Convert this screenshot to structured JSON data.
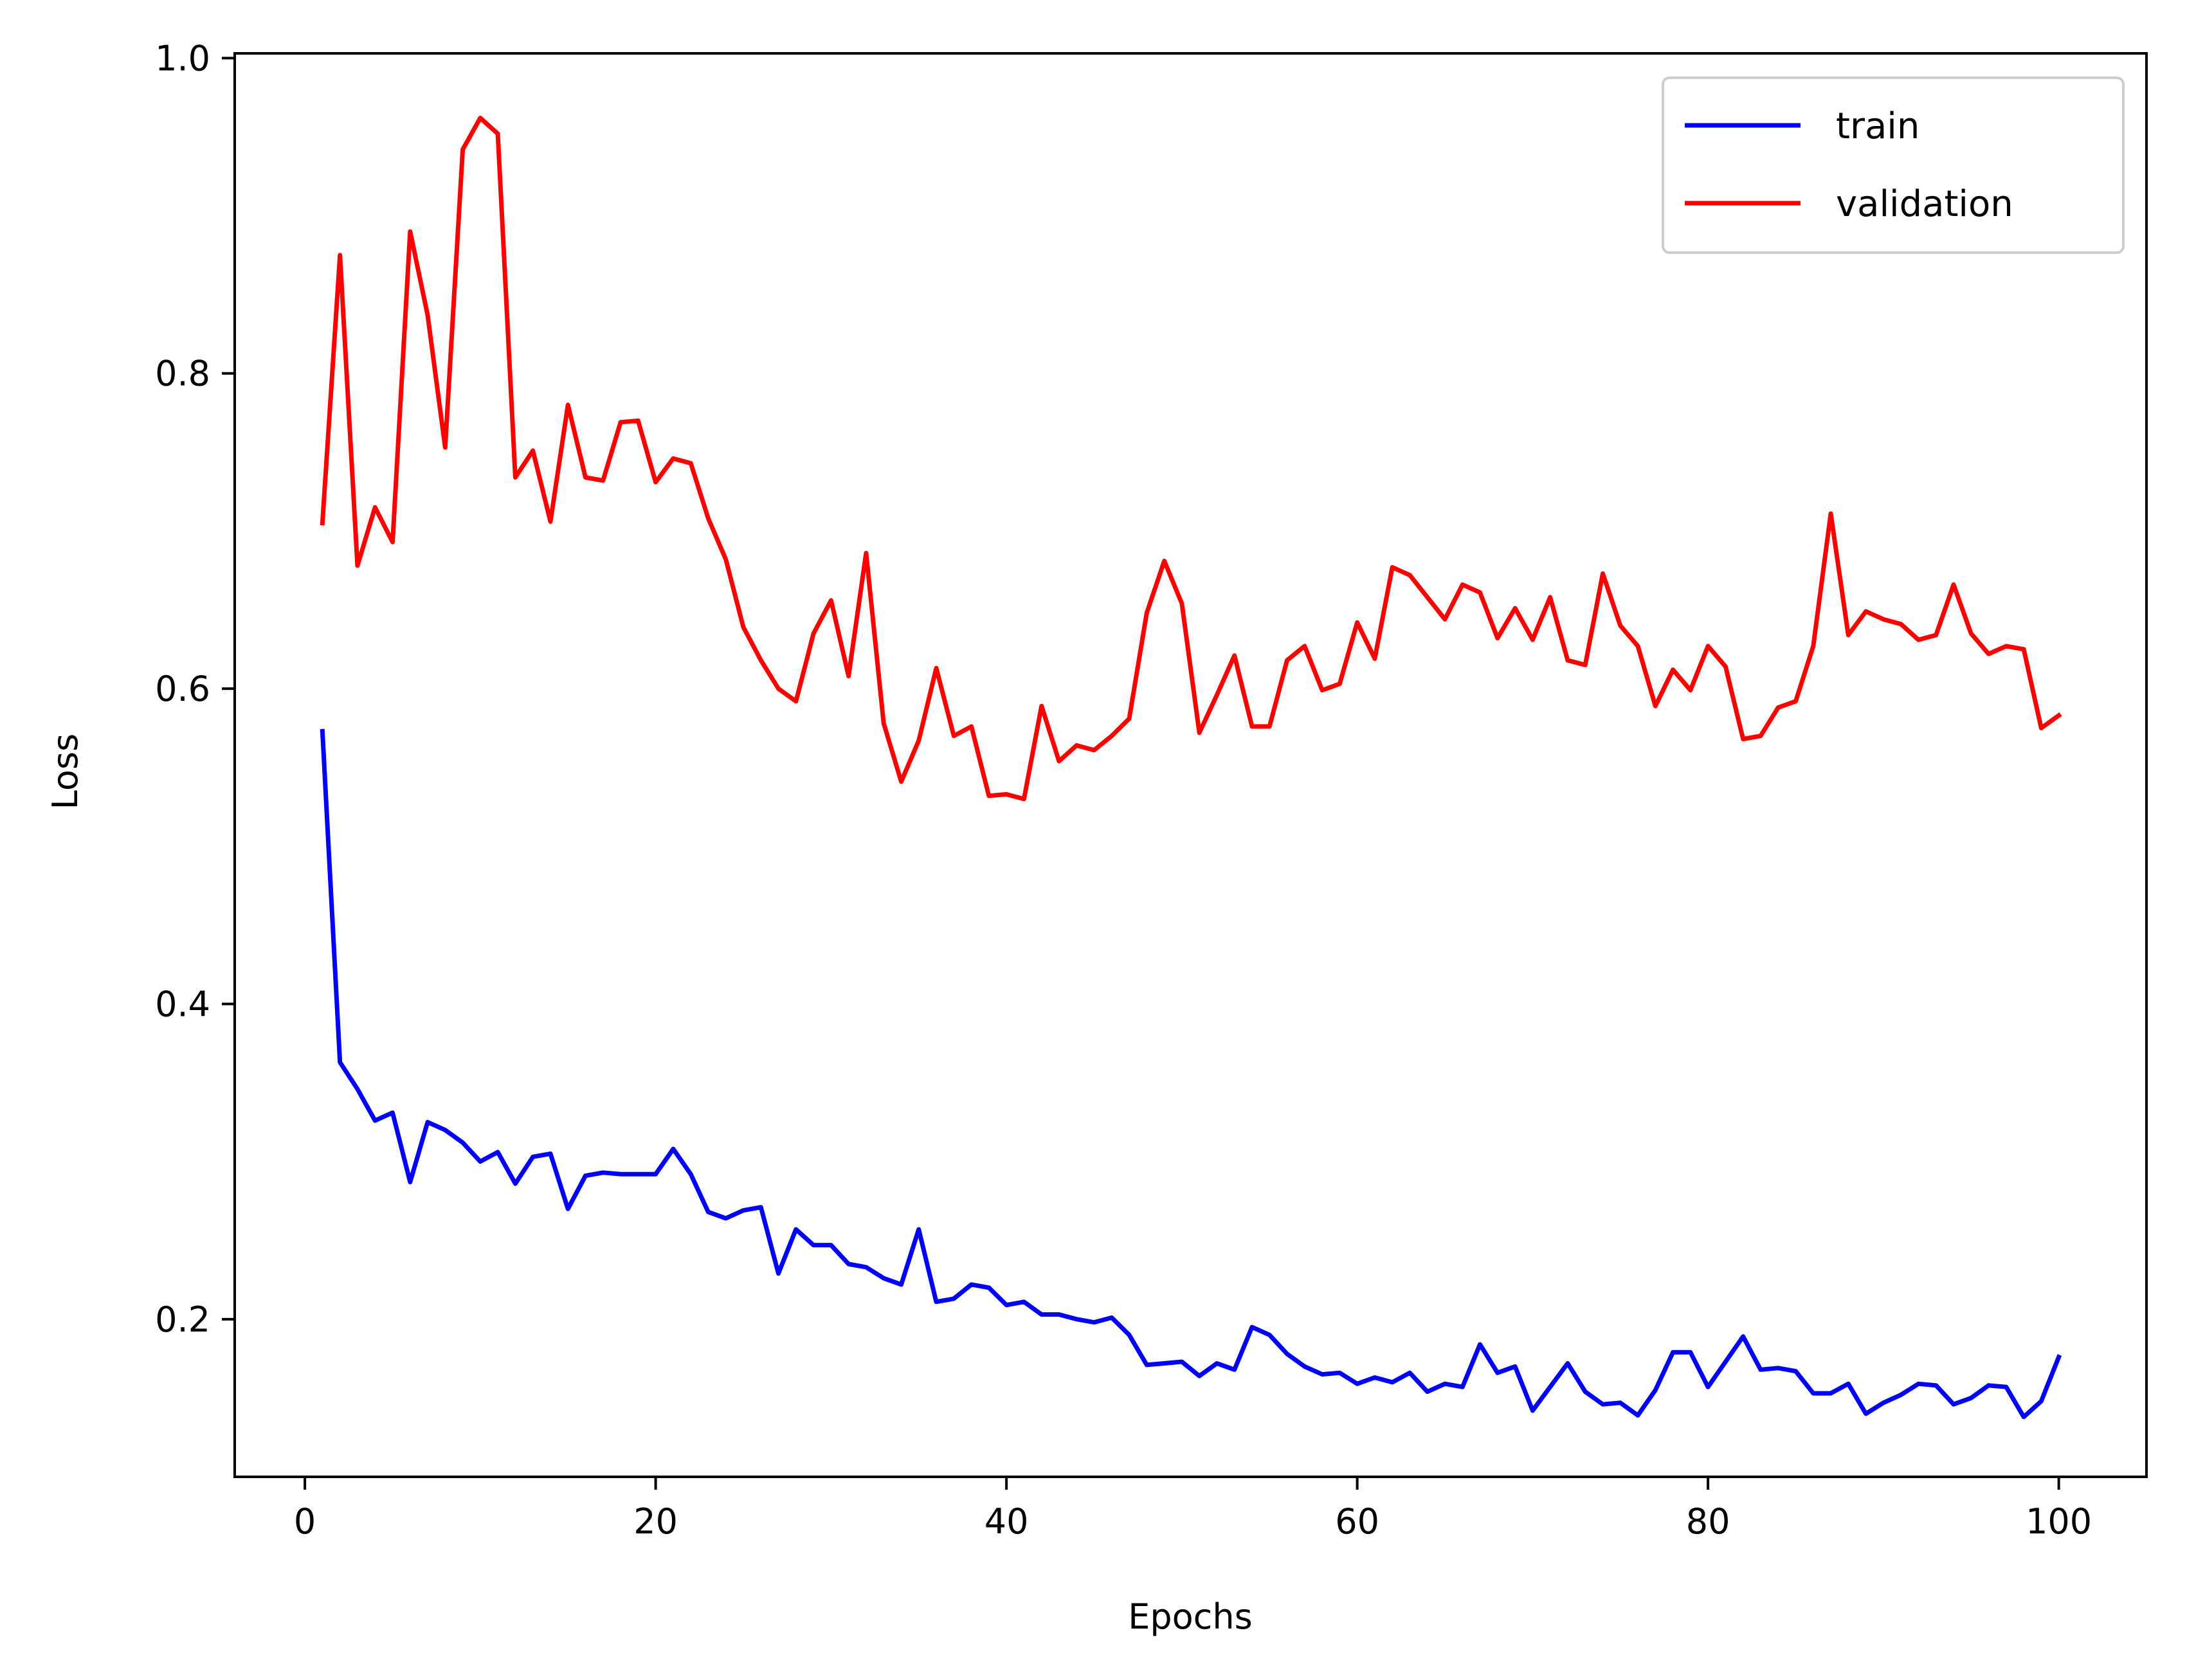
{
  "chart_data": {
    "type": "line",
    "xlabel": "Epochs",
    "ylabel": "Loss",
    "xlim": [
      -4,
      105
    ],
    "ylim": [
      0.1,
      1.003
    ],
    "x_ticks": [
      0,
      20,
      40,
      60,
      80,
      100
    ],
    "x_tick_labels": [
      "0",
      "20",
      "40",
      "60",
      "80",
      "100"
    ],
    "y_ticks": [
      0.2,
      0.4,
      0.6,
      0.8,
      1.0
    ],
    "y_tick_labels": [
      "0.2",
      "0.4",
      "0.6",
      "0.8",
      "1.0"
    ],
    "grid": false,
    "legend_position": "top-right",
    "x": [
      1,
      2,
      3,
      4,
      5,
      6,
      7,
      8,
      9,
      10,
      11,
      12,
      13,
      14,
      15,
      16,
      17,
      18,
      19,
      20,
      21,
      22,
      23,
      24,
      25,
      26,
      27,
      28,
      29,
      30,
      31,
      32,
      33,
      34,
      35,
      36,
      37,
      38,
      39,
      40,
      41,
      42,
      43,
      44,
      45,
      46,
      47,
      48,
      49,
      50,
      51,
      52,
      53,
      54,
      55,
      56,
      57,
      58,
      59,
      60,
      61,
      62,
      63,
      64,
      65,
      66,
      67,
      68,
      69,
      70,
      71,
      72,
      73,
      74,
      75,
      76,
      77,
      78,
      79,
      80,
      81,
      82,
      83,
      84,
      85,
      86,
      87,
      88,
      89,
      90,
      91,
      92,
      93,
      94,
      95,
      96,
      97,
      98,
      99,
      100
    ],
    "series": [
      {
        "name": "train",
        "color": "#0000ff",
        "values": [
          0.573,
          0.363,
          0.346,
          0.326,
          0.331,
          0.287,
          0.325,
          0.32,
          0.312,
          0.3,
          0.306,
          0.286,
          0.303,
          0.305,
          0.27,
          0.291,
          0.293,
          0.292,
          0.292,
          0.292,
          0.308,
          0.292,
          0.268,
          0.264,
          0.269,
          0.271,
          0.229,
          0.257,
          0.247,
          0.247,
          0.235,
          0.233,
          0.226,
          0.222,
          0.257,
          0.211,
          0.213,
          0.222,
          0.22,
          0.209,
          0.211,
          0.203,
          0.203,
          0.2,
          0.198,
          0.201,
          0.19,
          0.171,
          0.172,
          0.173,
          0.164,
          0.172,
          0.168,
          0.195,
          0.19,
          0.178,
          0.17,
          0.165,
          0.166,
          0.159,
          0.163,
          0.16,
          0.166,
          0.154,
          0.159,
          0.157,
          0.184,
          0.166,
          0.17,
          0.142,
          0.157,
          0.172,
          0.154,
          0.146,
          0.147,
          0.139,
          0.155,
          0.179,
          0.179,
          0.157,
          0.173,
          0.189,
          0.168,
          0.169,
          0.167,
          0.153,
          0.153,
          0.159,
          0.14,
          0.147,
          0.152,
          0.159,
          0.158,
          0.146,
          0.15,
          0.158,
          0.157,
          0.138,
          0.148,
          0.176
        ]
      },
      {
        "name": "validation",
        "color": "#ff0000",
        "values": [
          0.705,
          0.875,
          0.678,
          0.715,
          0.693,
          0.89,
          0.837,
          0.753,
          0.942,
          0.962,
          0.952,
          0.734,
          0.751,
          0.706,
          0.78,
          0.734,
          0.732,
          0.769,
          0.77,
          0.731,
          0.746,
          0.743,
          0.708,
          0.682,
          0.639,
          0.618,
          0.6,
          0.592,
          0.635,
          0.656,
          0.608,
          0.686,
          0.578,
          0.541,
          0.567,
          0.613,
          0.57,
          0.576,
          0.532,
          0.533,
          0.53,
          0.589,
          0.554,
          0.564,
          0.561,
          0.57,
          0.581,
          0.648,
          0.681,
          0.654,
          0.572,
          0.596,
          0.621,
          0.576,
          0.576,
          0.618,
          0.627,
          0.599,
          0.603,
          0.642,
          0.619,
          0.677,
          0.672,
          0.658,
          0.644,
          0.666,
          0.661,
          0.632,
          0.651,
          0.631,
          0.658,
          0.618,
          0.615,
          0.673,
          0.64,
          0.627,
          0.589,
          0.612,
          0.599,
          0.627,
          0.614,
          0.568,
          0.57,
          0.588,
          0.592,
          0.627,
          0.711,
          0.634,
          0.649,
          0.644,
          0.641,
          0.631,
          0.634,
          0.666,
          0.635,
          0.622,
          0.627,
          0.625,
          0.575,
          0.583
        ]
      }
    ]
  }
}
